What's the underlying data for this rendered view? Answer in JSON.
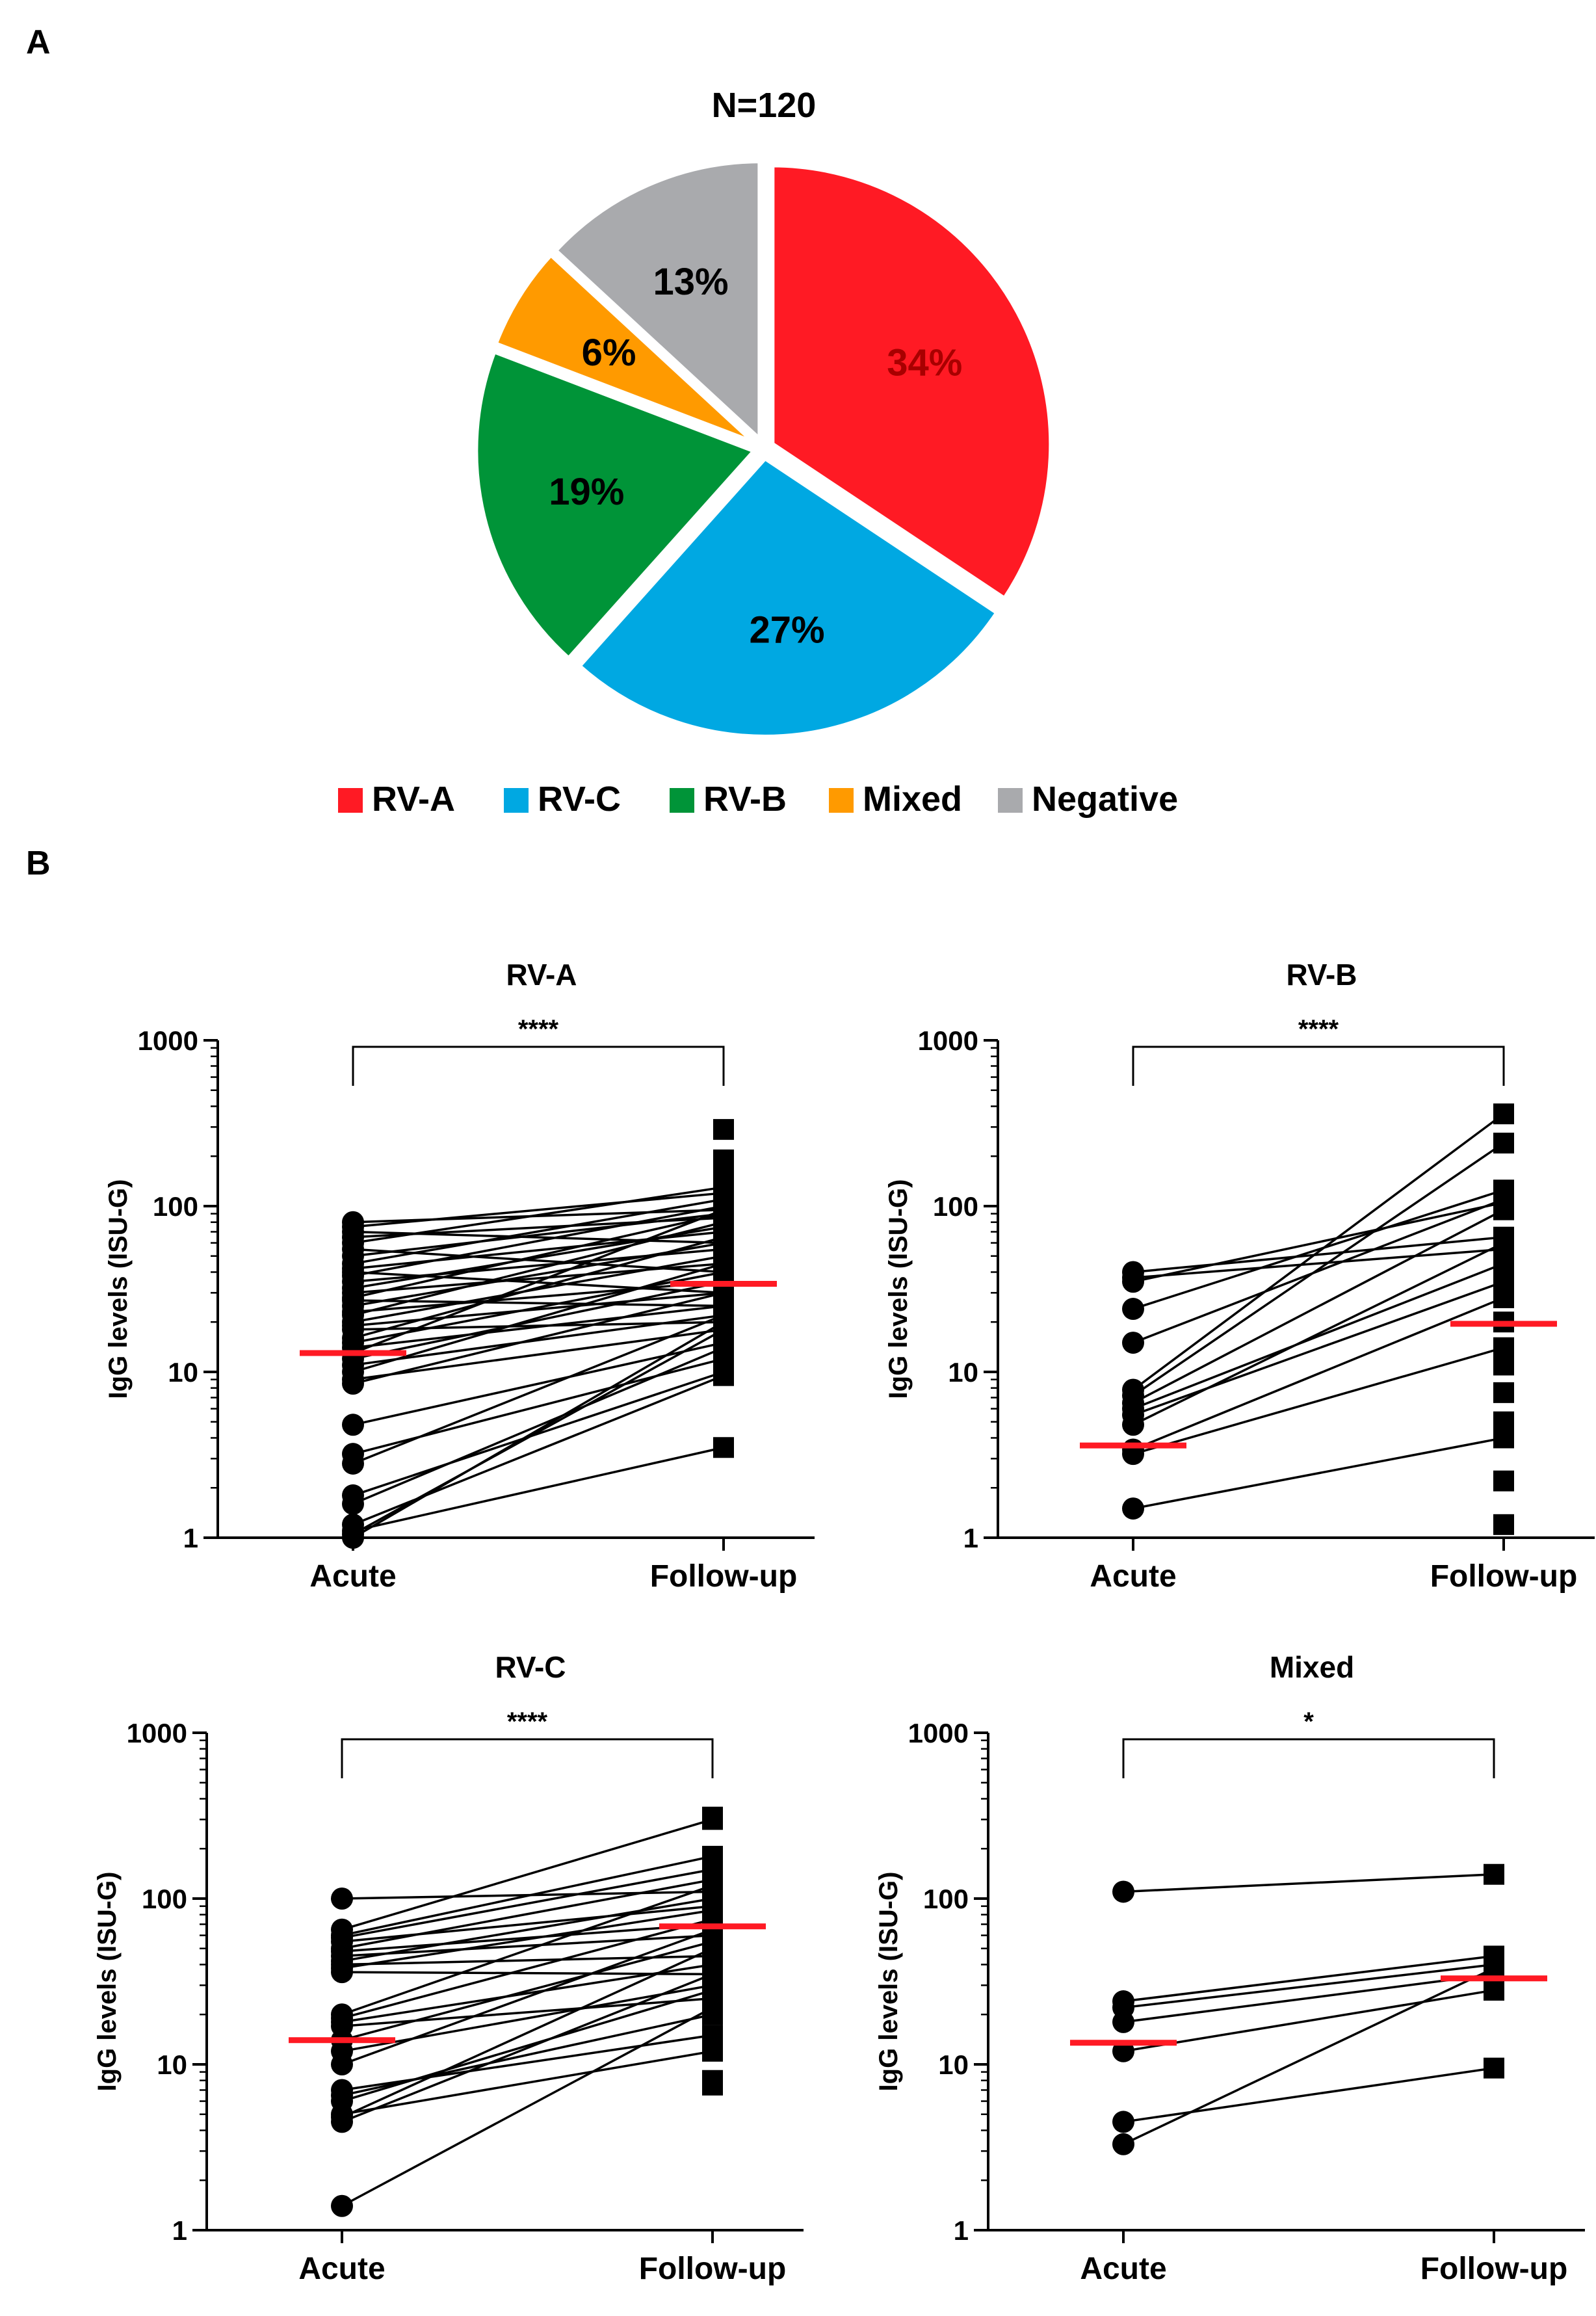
{
  "panel_labels": {
    "a": "A",
    "b": "B"
  },
  "chart_data": [
    {
      "type": "pie",
      "title": "N=120",
      "slices": [
        {
          "label": "RV-A",
          "value": 34,
          "display": "34%",
          "color": "#ff1a24",
          "text_color": "#a80000"
        },
        {
          "label": "RV-C",
          "value": 27,
          "display": "27%",
          "color": "#00a8e2",
          "text_color": "#000000"
        },
        {
          "label": "RV-B",
          "value": 19,
          "display": "19%",
          "color": "#009438",
          "text_color": "#000000"
        },
        {
          "label": "Mixed",
          "value": 6,
          "display": "6%",
          "color": "#ff9a00",
          "text_color": "#000000"
        },
        {
          "label": "Negative",
          "value": 13,
          "display": "13%",
          "color": "#a9aaad",
          "text_color": "#000000"
        }
      ],
      "legend": [
        "RV-A",
        "RV-C",
        "RV-B",
        "Mixed",
        "Negative"
      ]
    },
    {
      "type": "scatter",
      "title": "RV-A",
      "ylabel": "IgG levels (ISU-G)",
      "yscale": "log",
      "ylim": [
        1,
        1000
      ],
      "yticks": [
        "1",
        "10",
        "100",
        "1000"
      ],
      "categories": [
        "Acute",
        "Follow-up"
      ],
      "significance": "****",
      "median_acute": 13,
      "median_followup": 34,
      "pairs": [
        [
          80,
          95
        ],
        [
          75,
          120
        ],
        [
          70,
          60
        ],
        [
          65,
          85
        ],
        [
          60,
          130
        ],
        [
          55,
          40
        ],
        [
          50,
          90
        ],
        [
          45,
          110
        ],
        [
          42,
          70
        ],
        [
          40,
          30
        ],
        [
          38,
          100
        ],
        [
          35,
          55
        ],
        [
          32,
          75
        ],
        [
          30,
          45
        ],
        [
          28,
          90
        ],
        [
          27,
          25
        ],
        [
          25,
          60
        ],
        [
          23,
          35
        ],
        [
          22,
          80
        ],
        [
          20,
          50
        ],
        [
          19,
          30
        ],
        [
          18,
          20
        ],
        [
          16,
          65
        ],
        [
          15,
          40
        ],
        [
          14,
          25
        ],
        [
          13,
          95
        ],
        [
          12,
          35
        ],
        [
          11,
          22
        ],
        [
          10,
          45
        ],
        [
          9,
          18
        ],
        [
          8.5,
          30
        ],
        [
          4.8,
          15
        ],
        [
          3.2,
          12
        ],
        [
          2.8,
          22
        ],
        [
          1.8,
          10
        ],
        [
          1.6,
          14
        ],
        [
          1.2,
          9.5
        ],
        [
          1.1,
          3.5
        ],
        [
          1.05,
          18
        ],
        [
          1.0,
          20
        ]
      ],
      "extra_followup": [
        290,
        190,
        140,
        150
      ]
    },
    {
      "type": "scatter",
      "title": "RV-B",
      "ylabel": "IgG levels (ISU-G)",
      "yscale": "log",
      "ylim": [
        1,
        1000
      ],
      "yticks": [
        "1",
        "10",
        "100",
        "1000"
      ],
      "categories": [
        "Acute",
        "Follow-up"
      ],
      "significance": "****",
      "median_acute": 3.6,
      "median_followup": 19.5,
      "pairs": [
        [
          40,
          65
        ],
        [
          37,
          55
        ],
        [
          35,
          105
        ],
        [
          24,
          125
        ],
        [
          15,
          110
        ],
        [
          7.8,
          360
        ],
        [
          7.2,
          240
        ],
        [
          6.5,
          95
        ],
        [
          6.0,
          45
        ],
        [
          5.5,
          35
        ],
        [
          4.8,
          60
        ],
        [
          3.4,
          28
        ],
        [
          3.2,
          14
        ],
        [
          1.5,
          4
        ]
      ],
      "extra_followup": [
        11,
        7.5,
        5,
        4.2,
        2.2,
        1.2,
        20
      ]
    },
    {
      "type": "scatter",
      "title": "RV-C",
      "ylabel": "IgG levels (ISU-G)",
      "yscale": "log",
      "ylim": [
        1,
        1000
      ],
      "yticks": [
        "1",
        "10",
        "100",
        "1000"
      ],
      "categories": [
        "Acute",
        "Follow-up"
      ],
      "significance": "****",
      "median_acute": 14,
      "median_followup": 68,
      "pairs": [
        [
          100,
          110
        ],
        [
          65,
          300
        ],
        [
          60,
          180
        ],
        [
          58,
          150
        ],
        [
          55,
          90
        ],
        [
          50,
          130
        ],
        [
          48,
          70
        ],
        [
          45,
          60
        ],
        [
          42,
          100
        ],
        [
          40,
          45
        ],
        [
          38,
          85
        ],
        [
          36,
          35
        ],
        [
          20,
          120
        ],
        [
          19,
          75
        ],
        [
          18,
          40
        ],
        [
          17,
          25
        ],
        [
          14,
          55
        ],
        [
          12,
          30
        ],
        [
          10,
          65
        ],
        [
          7,
          15
        ],
        [
          6.5,
          20
        ],
        [
          6,
          28
        ],
        [
          5,
          12
        ],
        [
          4.8,
          50
        ],
        [
          4.5,
          35
        ],
        [
          1.4,
          22
        ]
      ],
      "extra_followup": [
        310,
        8,
        7.5,
        90
      ]
    },
    {
      "type": "scatter",
      "title": "Mixed",
      "ylabel": "IgG levels (ISU-G)",
      "yscale": "log",
      "ylim": [
        1,
        1000
      ],
      "yticks": [
        "1",
        "10",
        "100",
        "1000"
      ],
      "categories": [
        "Acute",
        "Follow-up"
      ],
      "significance": "*",
      "median_acute": 13.5,
      "median_followup": 33,
      "pairs": [
        [
          110,
          140
        ],
        [
          24,
          45
        ],
        [
          22,
          40
        ],
        [
          18,
          35
        ],
        [
          12,
          28
        ],
        [
          4.5,
          9.5
        ],
        [
          3.3,
          38
        ]
      ],
      "extra_followup": []
    }
  ]
}
